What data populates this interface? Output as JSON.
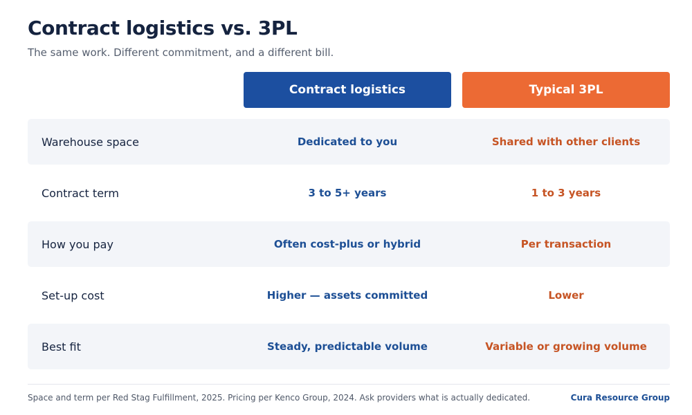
{
  "header": {
    "title": "Contract logistics vs. 3PL",
    "subtitle": "The same work. Different commitment, and a different bill."
  },
  "columns": {
    "a": "Contract logistics",
    "b": "Typical 3PL"
  },
  "rows": [
    {
      "label": "Warehouse space",
      "a": "Dedicated to you",
      "b": "Shared with other clients"
    },
    {
      "label": "Contract term",
      "a": "3 to 5+ years",
      "b": "1 to 3 years"
    },
    {
      "label": "How you pay",
      "a": "Often cost-plus or hybrid",
      "b": "Per transaction"
    },
    {
      "label": "Set-up cost",
      "a": "Higher — assets committed",
      "b": "Lower"
    },
    {
      "label": "Best fit",
      "a": "Steady, predictable volume",
      "b": "Variable or growing volume"
    }
  ],
  "footer": {
    "note": "Space and term per Red Stag Fulfillment, 2025. Pricing per Kenco Group, 2024. Ask providers what is actually dedicated.",
    "brand": "Cura Resource Group"
  },
  "colors": {
    "contract_logistics_accent": "#1c4fa0",
    "typical_3pl_accent": "#ec6a34",
    "row_shade": "#f3f5f9"
  }
}
